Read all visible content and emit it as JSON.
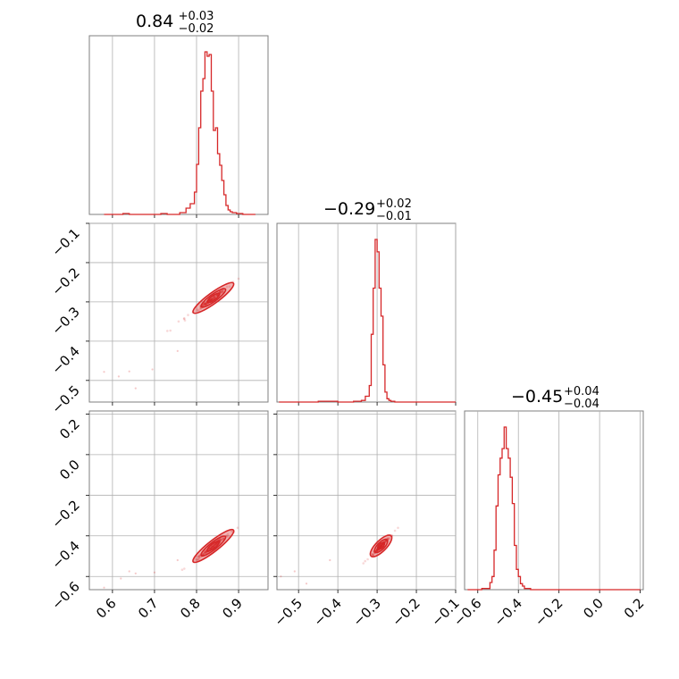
{
  "chart_data": {
    "type": "corner",
    "color": "#d62728",
    "params": [
      {
        "median": "0.84",
        "plus": "+0.03",
        "minus": "−0.02",
        "range": [
          0.545,
          0.97
        ],
        "ticks": [
          0.6,
          0.7,
          0.8,
          0.9
        ],
        "ticklabels": [
          "0.6",
          "0.7",
          "0.8",
          "0.9"
        ]
      },
      {
        "median": "−0.29",
        "plus": "+0.02",
        "minus": "−0.01",
        "range": [
          -0.555,
          -0.1
        ],
        "ticks": [
          -0.5,
          -0.4,
          -0.3,
          -0.2,
          -0.1
        ],
        "ticklabels": [
          "−0.5",
          "−0.4",
          "−0.3",
          "−0.2",
          "−0.1"
        ],
        "yticks": [
          -0.5,
          -0.4,
          -0.3,
          -0.2,
          -0.1
        ],
        "yticklabels": [
          "−0.5",
          "−0.4",
          "−0.3",
          "−0.2",
          "−0.1"
        ]
      },
      {
        "median": "−0.45",
        "plus": "+0.04",
        "minus": "−0.04",
        "range": [
          -0.665,
          0.215
        ],
        "ticks": [
          -0.6,
          -0.4,
          -0.2,
          0.0,
          0.2
        ],
        "ticklabels": [
          "−0.6",
          "−0.4",
          "−0.2",
          "0.0",
          "0.2"
        ],
        "yticks": [
          -0.6,
          -0.4,
          -0.2,
          0.0,
          0.2
        ],
        "yticklabels": [
          "−0.6",
          "−0.4",
          "−0.2",
          "0.0",
          "0.2"
        ]
      }
    ],
    "histograms": [
      {
        "param": 0,
        "bin_edges": [
          0.58,
          0.595,
          0.61,
          0.625,
          0.64,
          0.655,
          0.67,
          0.685,
          0.7,
          0.715,
          0.73,
          0.745,
          0.76,
          0.775,
          0.785,
          0.795,
          0.8,
          0.805,
          0.81,
          0.815,
          0.82,
          0.825,
          0.83,
          0.835,
          0.84,
          0.845,
          0.85,
          0.855,
          0.86,
          0.865,
          0.87,
          0.875,
          0.88,
          0.885,
          0.895,
          0.91,
          0.925,
          0.94
        ],
        "counts": [
          0,
          0,
          0,
          1,
          0,
          0,
          0,
          0,
          0,
          1,
          0,
          0,
          2,
          7,
          12,
          25,
          56,
          97,
          138,
          152,
          182,
          177,
          179,
          138,
          94,
          97,
          68,
          55,
          38,
          22,
          10,
          5,
          3,
          2,
          1,
          0,
          0
        ]
      },
      {
        "param": 1,
        "bin_edges": [
          -0.55,
          -0.45,
          -0.4,
          -0.36,
          -0.34,
          -0.33,
          -0.32,
          -0.315,
          -0.31,
          -0.305,
          -0.3,
          -0.295,
          -0.29,
          -0.285,
          -0.28,
          -0.275,
          -0.27,
          -0.265,
          -0.26,
          -0.255,
          -0.25,
          -0.24,
          -0.22,
          -0.15,
          -0.1
        ],
        "counts": [
          0,
          1,
          0,
          1,
          2,
          7,
          20,
          82,
          138,
          197,
          182,
          138,
          104,
          45,
          12,
          4,
          2,
          1,
          1,
          0,
          0,
          0,
          0,
          0
        ]
      },
      {
        "param": 2,
        "bin_edges": [
          -0.65,
          -0.6,
          -0.58,
          -0.56,
          -0.54,
          -0.53,
          -0.52,
          -0.51,
          -0.5,
          -0.49,
          -0.48,
          -0.47,
          -0.46,
          -0.45,
          -0.44,
          -0.43,
          -0.42,
          -0.41,
          -0.4,
          -0.39,
          -0.38,
          -0.37,
          -0.36,
          -0.34,
          -0.32,
          -0.3,
          -0.25,
          -0.2,
          0.0,
          0.2
        ],
        "counts": [
          0,
          0,
          1,
          1,
          6,
          11,
          33,
          70,
          96,
          110,
          118,
          136,
          118,
          110,
          94,
          72,
          37,
          17,
          11,
          5,
          3,
          1,
          1,
          0,
          0,
          0,
          0,
          0,
          0
        ]
      }
    ],
    "scatter_2d": [
      {
        "x_param": 0,
        "y_param": 1,
        "relation": "y = -0.295 + 0.78*(x - 0.84)",
        "outliers": [
          [
            0.58,
            -0.478
          ],
          [
            0.615,
            -0.49
          ],
          [
            0.64,
            -0.477
          ],
          [
            0.655,
            -0.52
          ],
          [
            0.695,
            -0.472
          ],
          [
            0.755,
            -0.425
          ]
        ],
        "level_radii": [
          0.3,
          0.6,
          1.0
        ]
      },
      {
        "x_param": 0,
        "y_param": 2,
        "relation": "y = -0.45 + 1.63*(x - 0.84)",
        "outliers": [
          [
            0.58,
            -0.655
          ],
          [
            0.62,
            -0.61
          ],
          [
            0.64,
            -0.575
          ],
          [
            0.655,
            -0.585
          ],
          [
            0.7,
            -0.58
          ],
          [
            0.755,
            -0.52
          ]
        ],
        "level_radii": [
          0.3,
          0.6,
          1.0
        ]
      },
      {
        "x_param": 1,
        "y_param": 2,
        "relation": "y = -0.45 + 1.95*(x + 0.29)",
        "outliers": [
          [
            -0.545,
            -0.6
          ],
          [
            -0.51,
            -0.575
          ],
          [
            -0.48,
            -0.635
          ],
          [
            -0.42,
            -0.52
          ]
        ],
        "level_radii": [
          0.3,
          0.6,
          1.0
        ]
      }
    ]
  }
}
